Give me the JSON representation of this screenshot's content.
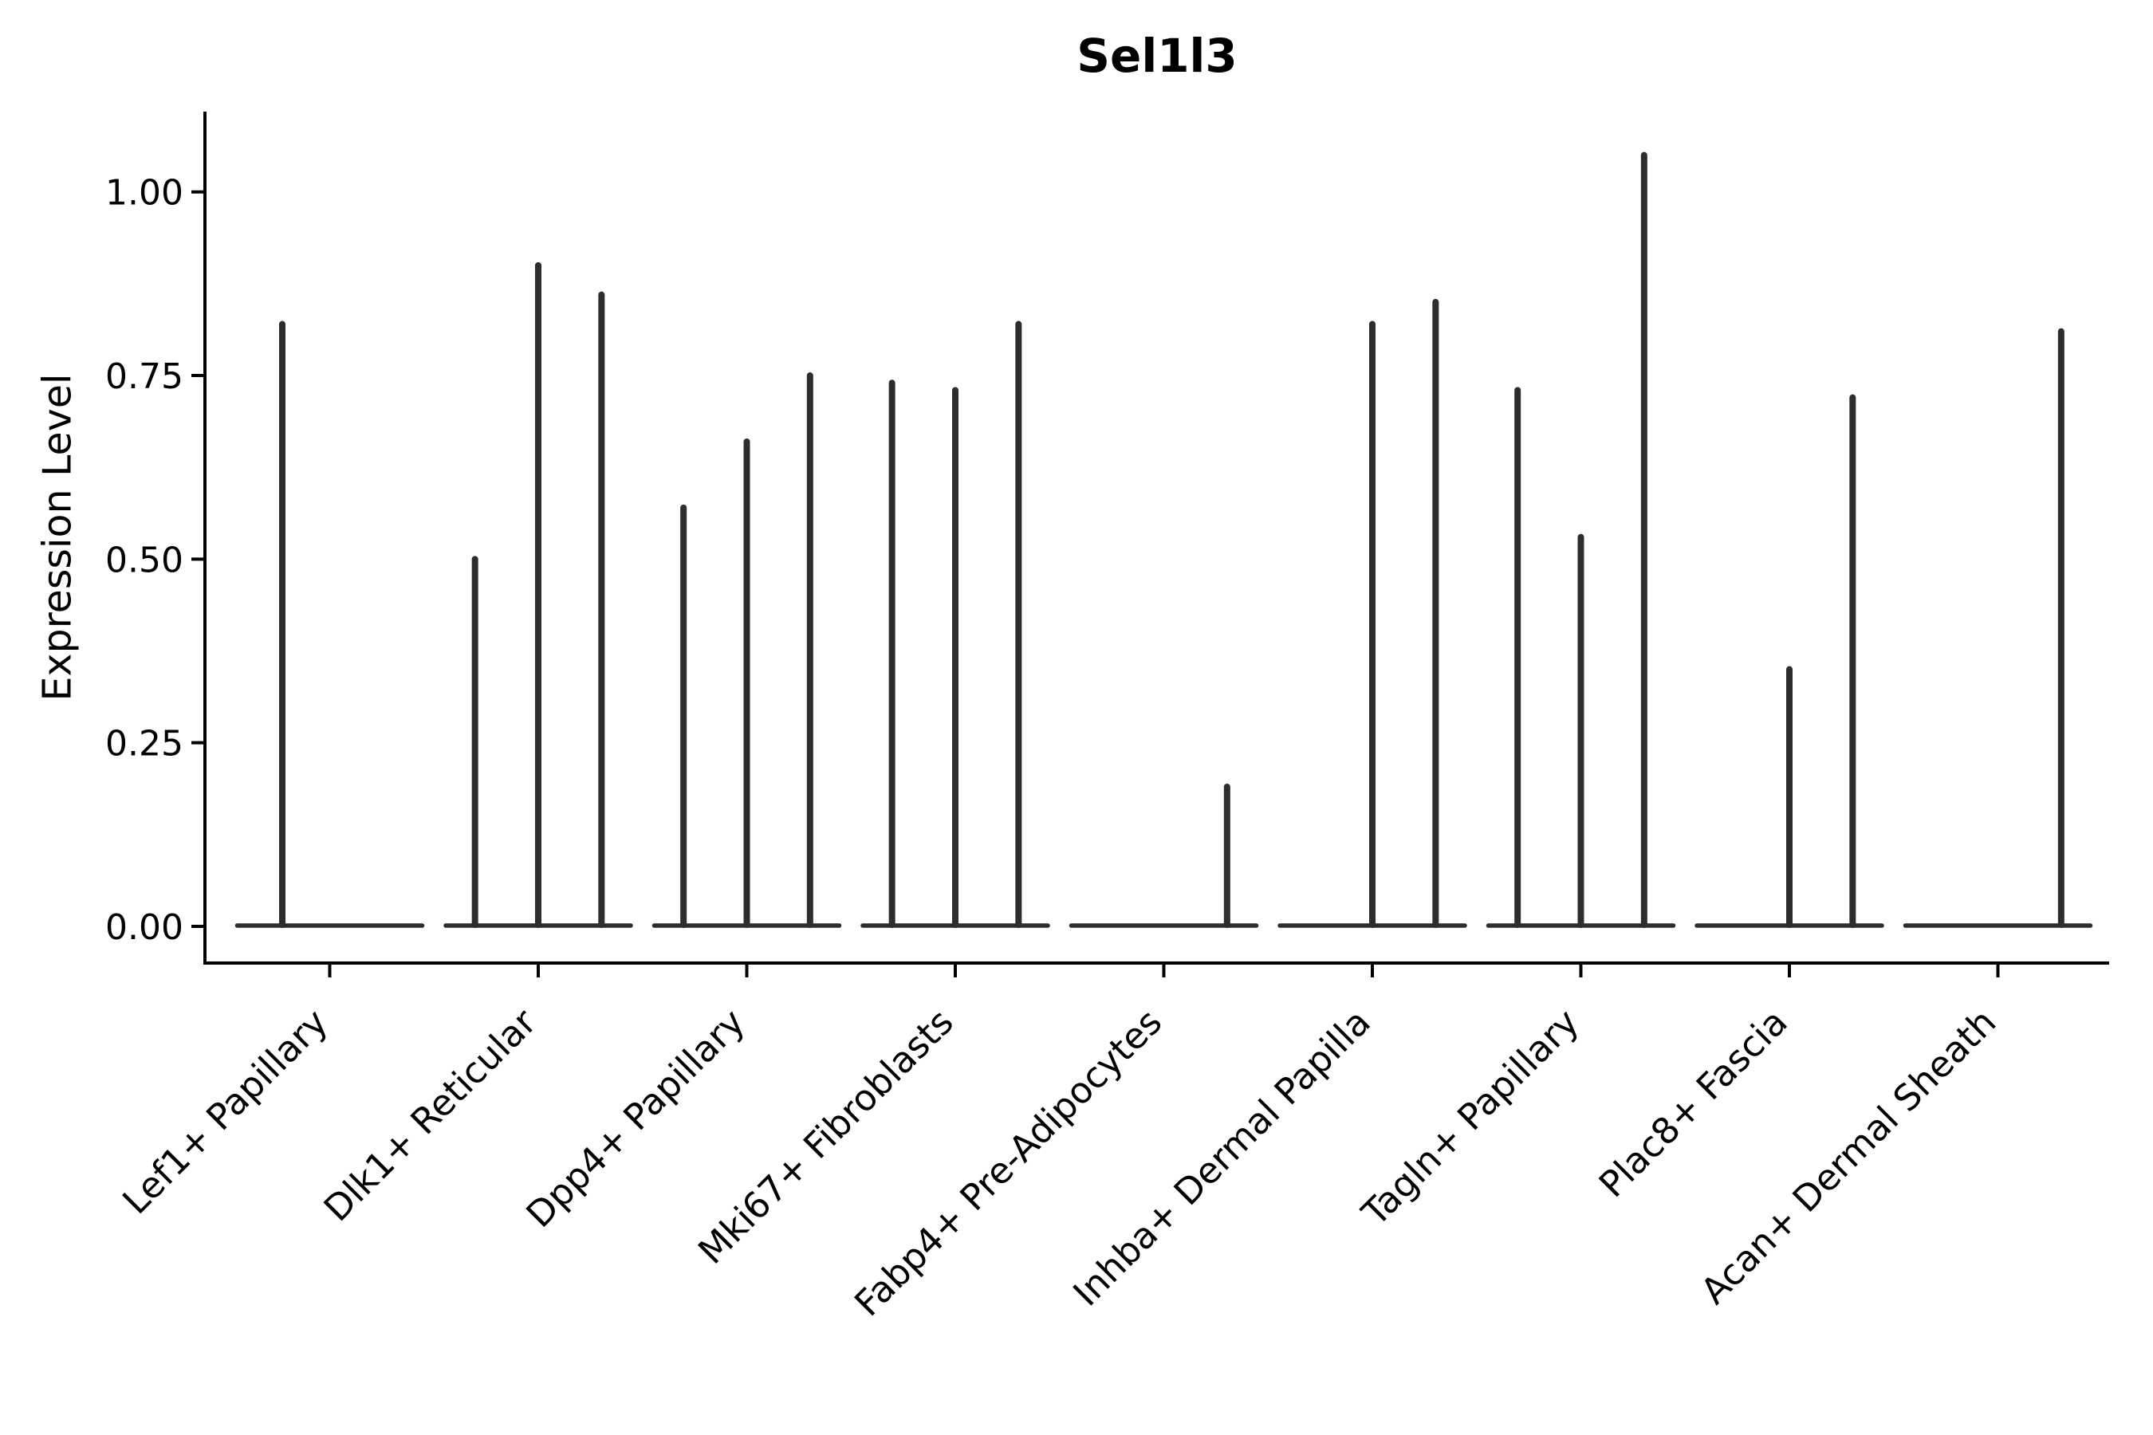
{
  "chart_data": {
    "type": "violin",
    "title": "Sel1l3",
    "xlabel": "",
    "ylabel": "Expression Level",
    "grid": false,
    "legend": "none",
    "ylim": [
      -0.05,
      1.11
    ],
    "yticks": [
      {
        "value": 1.0,
        "label": "1.00"
      },
      {
        "value": 0.75,
        "label": "0.75"
      },
      {
        "value": 0.5,
        "label": "0.50"
      },
      {
        "value": 0.25,
        "label": "0.25"
      },
      {
        "value": 0.0,
        "label": "0.00"
      }
    ],
    "categories": [
      "Lef1+ Papillary",
      "Dlk1+ Reticular",
      "Dpp4+ Papillary",
      "Mki67+ Fibroblasts",
      "Fabp4+ Pre-Adipocytes",
      "Inhba+ Dermal Papilla",
      "Tagln+ Papillary",
      "Plac8+ Fascia",
      "Acan+ Dermal Sheath"
    ],
    "groups": [
      {
        "category": "Lef1+ Papillary",
        "violin_max": [
          0.82,
          0
        ]
      },
      {
        "category": "Dlk1+ Reticular",
        "violin_max": [
          0.5,
          0.9,
          0.86
        ]
      },
      {
        "category": "Dpp4+ Papillary",
        "violin_max": [
          0.57,
          0.66,
          0.75
        ]
      },
      {
        "category": "Mki67+ Fibroblasts",
        "violin_max": [
          0.74,
          0.73,
          0.82
        ]
      },
      {
        "category": "Fabp4+ Pre-Adipocytes",
        "violin_max": [
          0,
          0,
          0.19
        ]
      },
      {
        "category": "Inhba+ Dermal Papilla",
        "violin_max": [
          0,
          0.82,
          0.85
        ]
      },
      {
        "category": "Tagln+ Papillary",
        "violin_max": [
          0.73,
          0.53,
          1.05
        ]
      },
      {
        "category": "Plac8+ Fascia",
        "violin_max": [
          0,
          0.35,
          0.72
        ]
      },
      {
        "category": "Acan+ Dermal Sheath",
        "violin_max": [
          0,
          0,
          0.81
        ]
      }
    ],
    "colors": {
      "violin": "#2d2d2d",
      "axis": "#000000",
      "text": "#000000",
      "background": "#ffffff"
    }
  }
}
